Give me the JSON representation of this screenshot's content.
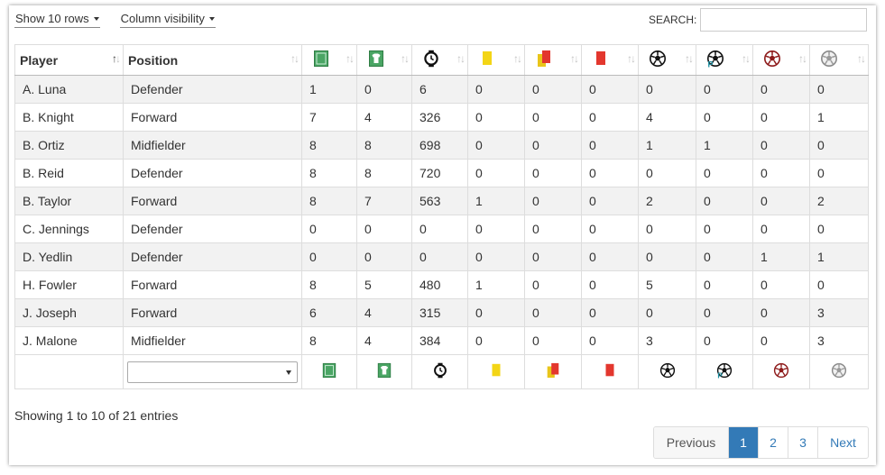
{
  "toolbar": {
    "show_rows": "Show 10 rows",
    "column_visibility": "Column visibility",
    "search_label": "SEARCH:",
    "search_value": ""
  },
  "colors": {
    "green": "#4aa564",
    "yellow": "#f3d516",
    "red": "#e3372e",
    "gold": "#e9c51a",
    "darkred": "#8e1b1b",
    "active_page": "#337ab7"
  },
  "columns": [
    {
      "label": "Player",
      "sort": "active"
    },
    {
      "label": "Position",
      "sort": "both"
    },
    {
      "icon": "games-played-icon",
      "sort": "both"
    },
    {
      "icon": "games-started-icon",
      "sort": "both"
    },
    {
      "icon": "minutes-icon",
      "sort": "both"
    },
    {
      "icon": "yellow-card-icon",
      "sort": "both"
    },
    {
      "icon": "second-yellow-card-icon",
      "sort": "both"
    },
    {
      "icon": "red-card-icon",
      "sort": "both"
    },
    {
      "icon": "goals-icon",
      "sort": "both"
    },
    {
      "icon": "penalty-goals-icon",
      "sort": "both"
    },
    {
      "icon": "own-goals-icon",
      "sort": "both"
    },
    {
      "icon": "assists-icon",
      "sort": "both"
    }
  ],
  "rows": [
    [
      "A. Luna",
      "Defender",
      "1",
      "0",
      "6",
      "0",
      "0",
      "0",
      "0",
      "0",
      "0",
      "0"
    ],
    [
      "B. Knight",
      "Forward",
      "7",
      "4",
      "326",
      "0",
      "0",
      "0",
      "4",
      "0",
      "0",
      "1"
    ],
    [
      "B. Ortiz",
      "Midfielder",
      "8",
      "8",
      "698",
      "0",
      "0",
      "0",
      "1",
      "1",
      "0",
      "0"
    ],
    [
      "B. Reid",
      "Defender",
      "8",
      "8",
      "720",
      "0",
      "0",
      "0",
      "0",
      "0",
      "0",
      "0"
    ],
    [
      "B. Taylor",
      "Forward",
      "8",
      "7",
      "563",
      "1",
      "0",
      "0",
      "2",
      "0",
      "0",
      "2"
    ],
    [
      "C. Jennings",
      "Defender",
      "0",
      "0",
      "0",
      "0",
      "0",
      "0",
      "0",
      "0",
      "0",
      "0"
    ],
    [
      "D. Yedlin",
      "Defender",
      "0",
      "0",
      "0",
      "0",
      "0",
      "0",
      "0",
      "0",
      "1",
      "1"
    ],
    [
      "H. Fowler",
      "Forward",
      "8",
      "5",
      "480",
      "1",
      "0",
      "0",
      "5",
      "0",
      "0",
      "0"
    ],
    [
      "J. Joseph",
      "Forward",
      "6",
      "4",
      "315",
      "0",
      "0",
      "0",
      "0",
      "0",
      "0",
      "3"
    ],
    [
      "J. Malone",
      "Midfielder",
      "8",
      "4",
      "384",
      "0",
      "0",
      "0",
      "3",
      "0",
      "0",
      "3"
    ]
  ],
  "footer": {
    "position_filter_value": ""
  },
  "info": "Showing 1 to 10 of 21 entries",
  "pagination": {
    "previous": "Previous",
    "pages": [
      "1",
      "2",
      "3"
    ],
    "current": "1",
    "next": "Next"
  }
}
